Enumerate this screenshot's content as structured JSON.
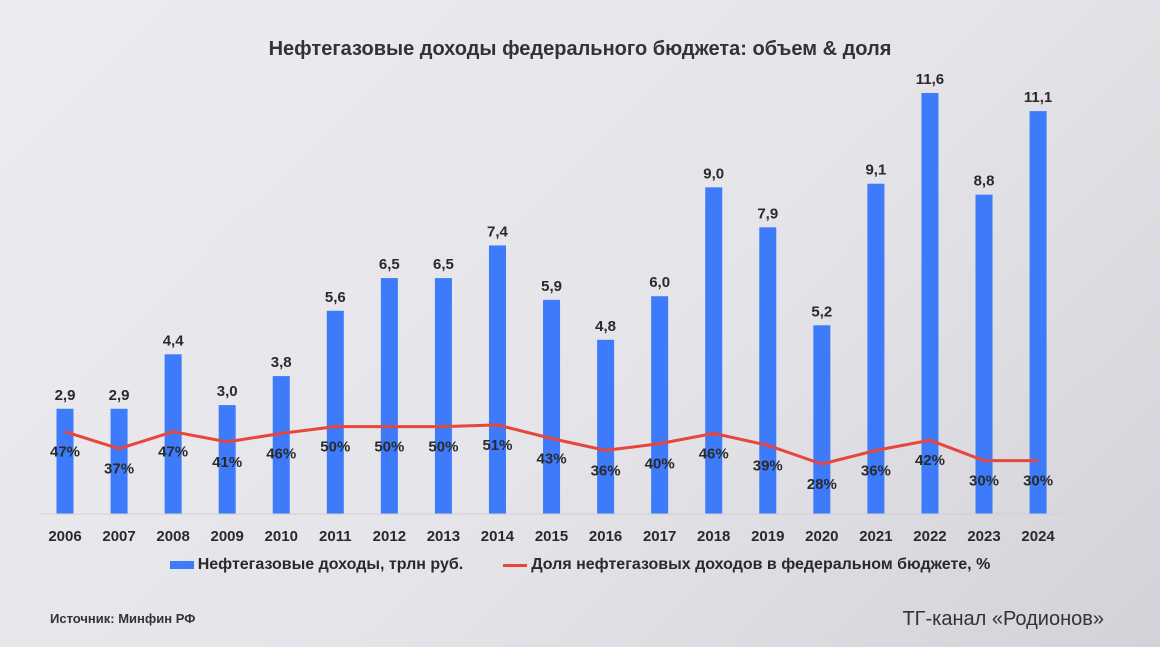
{
  "chart_data": {
    "type": "bar+line",
    "title": "Нефтегазовые доходы федерального бюджета: объем & доля",
    "categories": [
      "2006",
      "2007",
      "2008",
      "2009",
      "2010",
      "2011",
      "2012",
      "2013",
      "2014",
      "2015",
      "2016",
      "2017",
      "2018",
      "2019",
      "2020",
      "2021",
      "2022",
      "2023",
      "2024"
    ],
    "series": [
      {
        "name": "Нефтегазовые доходы, трлн руб.",
        "type": "bar",
        "color": "#3d7bfa",
        "values": [
          2.9,
          2.9,
          4.4,
          3.0,
          3.8,
          5.6,
          6.5,
          6.5,
          7.4,
          5.9,
          4.8,
          6.0,
          9.0,
          7.9,
          5.2,
          9.1,
          11.6,
          8.8,
          11.1
        ],
        "labels": [
          "2,9",
          "2,9",
          "4,4",
          "3,0",
          "3,8",
          "5,6",
          "6,5",
          "6,5",
          "7,4",
          "5,9",
          "4,8",
          "6,0",
          "9,0",
          "7,9",
          "5,2",
          "9,1",
          "11,6",
          "8,8",
          "11,1"
        ]
      },
      {
        "name": "Доля нефтегазовых доходов в федеральном бюджете, %",
        "type": "line",
        "color": "#e8453c",
        "values": [
          47,
          37,
          47,
          41,
          46,
          50,
          50,
          50,
          51,
          43,
          36,
          40,
          46,
          39,
          28,
          36,
          42,
          30,
          30
        ],
        "labels": [
          "47%",
          "37%",
          "47%",
          "41%",
          "46%",
          "50%",
          "50%",
          "50%",
          "51%",
          "43%",
          "36%",
          "40%",
          "46%",
          "39%",
          "28%",
          "36%",
          "42%",
          "30%",
          "30%"
        ]
      }
    ],
    "ylim": [
      0,
      11.6
    ],
    "y2lim": [
      0,
      248
    ],
    "legend": "bottom"
  },
  "footer": {
    "source": "Источник: Минфин РФ",
    "channel": "ТГ-канал «Родионов»"
  }
}
